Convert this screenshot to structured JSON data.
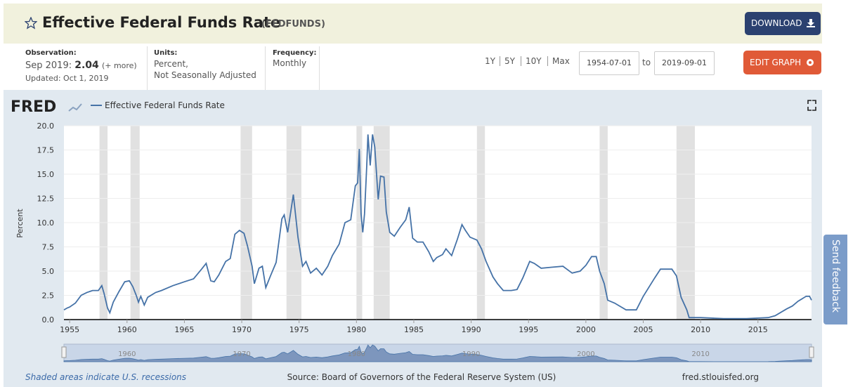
{
  "header": {
    "title": "Effective Federal Funds Rate",
    "series_id": "(FEDFUNDS)",
    "download": "DOWNLOAD"
  },
  "info": {
    "observation_label": "Observation:",
    "observation_date": "Sep 2019:",
    "observation_value": "2.04",
    "more": "(+ more)",
    "updated": "Updated: Oct 1, 2019",
    "units_label": "Units:",
    "units_1": "Percent,",
    "units_2": "Not Seasonally Adjusted",
    "frequency_label": "Frequency:",
    "frequency": "Monthly"
  },
  "range": {
    "links": [
      "1Y",
      "5Y",
      "10Y",
      "Max"
    ],
    "start": "1954-07-01",
    "to": "to",
    "end": "2019-09-01",
    "edit": "EDIT GRAPH"
  },
  "chart_data": {
    "type": "line",
    "logo": "FRED",
    "ylabel": "Percent",
    "x": [
      1954.5,
      1954.8,
      1955.0,
      1955.5,
      1956.0,
      1956.5,
      1957.0,
      1957.5,
      1957.8,
      1958.0,
      1958.3,
      1958.5,
      1958.8,
      1959.3,
      1959.8,
      1960.2,
      1960.5,
      1960.8,
      1961.0,
      1961.2,
      1961.5,
      1961.8,
      1962.5,
      1963.0,
      1964.0,
      1965.0,
      1965.8,
      1966.5,
      1966.9,
      1967.3,
      1967.6,
      1968.0,
      1968.6,
      1969.0,
      1969.4,
      1969.8,
      1970.2,
      1970.5,
      1970.9,
      1971.1,
      1971.5,
      1971.8,
      1972.1,
      1972.5,
      1973.0,
      1973.5,
      1973.7,
      1974.0,
      1974.5,
      1974.9,
      1975.3,
      1975.6,
      1976.0,
      1976.5,
      1977.0,
      1977.5,
      1977.9,
      1978.5,
      1979.0,
      1979.5,
      1979.9,
      1980.1,
      1980.25,
      1980.4,
      1980.55,
      1980.7,
      1980.9,
      1981.0,
      1981.2,
      1981.4,
      1981.6,
      1981.9,
      1982.1,
      1982.4,
      1982.6,
      1982.9,
      1983.3,
      1983.8,
      1984.3,
      1984.6,
      1984.9,
      1985.3,
      1985.8,
      1986.3,
      1986.7,
      1987.0,
      1987.5,
      1987.8,
      1988.3,
      1988.8,
      1989.2,
      1989.5,
      1989.9,
      1990.5,
      1990.9,
      1991.3,
      1991.9,
      1992.3,
      1992.8,
      1993.5,
      1994.0,
      1994.5,
      1995.1,
      1995.5,
      1996.1,
      1997.0,
      1998.0,
      1998.8,
      1999.5,
      2000.0,
      2000.5,
      2000.9,
      2001.2,
      2001.6,
      2001.9,
      2002.5,
      2003.5,
      2004.4,
      2005.0,
      2006.0,
      2006.5,
      2007.5,
      2007.9,
      2008.3,
      2008.8,
      2009.0,
      2010.0,
      2012.0,
      2014.0,
      2015.9,
      2016.5,
      2017.5,
      2018.0,
      2018.5,
      2019.2,
      2019.5,
      2019.67
    ],
    "series": [
      {
        "name": "Effective Federal Funds Rate",
        "color": "#4572a7",
        "values": [
          1.0,
          1.2,
          1.3,
          1.7,
          2.5,
          2.8,
          3.0,
          3.0,
          3.5,
          2.7,
          1.2,
          0.7,
          1.8,
          2.9,
          3.9,
          4.0,
          3.4,
          2.5,
          1.8,
          2.4,
          1.5,
          2.3,
          2.8,
          3.0,
          3.5,
          3.9,
          4.2,
          5.2,
          5.8,
          4.0,
          3.9,
          4.6,
          6.0,
          6.3,
          8.8,
          9.2,
          8.9,
          7.6,
          5.5,
          3.7,
          5.3,
          5.5,
          3.3,
          4.5,
          5.9,
          10.4,
          10.8,
          9.0,
          12.9,
          8.5,
          5.5,
          6.0,
          4.8,
          5.3,
          4.6,
          5.5,
          6.6,
          7.8,
          10.0,
          10.3,
          13.8,
          14.1,
          17.6,
          10.9,
          9.0,
          10.9,
          15.9,
          19.1,
          15.9,
          19.1,
          17.8,
          12.4,
          14.8,
          14.7,
          11.1,
          9.0,
          8.6,
          9.5,
          10.3,
          11.6,
          8.4,
          8.0,
          8.0,
          7.0,
          6.0,
          6.4,
          6.7,
          7.3,
          6.6,
          8.3,
          9.8,
          9.2,
          8.5,
          8.2,
          7.3,
          6.0,
          4.4,
          3.7,
          3.0,
          3.0,
          3.1,
          4.3,
          6.0,
          5.8,
          5.3,
          5.4,
          5.5,
          4.8,
          5.0,
          5.6,
          6.5,
          6.5,
          5.0,
          3.7,
          2.0,
          1.7,
          1.0,
          1.0,
          2.4,
          4.3,
          5.2,
          5.2,
          4.5,
          2.3,
          1.0,
          0.2,
          0.2,
          0.1,
          0.1,
          0.2,
          0.4,
          1.1,
          1.4,
          1.9,
          2.4,
          2.4,
          2.0
        ]
      }
    ],
    "xlim": [
      1954.5,
      2019.67
    ],
    "ylim": [
      0,
      20
    ],
    "xticks": [
      1955,
      1960,
      1965,
      1970,
      1975,
      1980,
      1985,
      1990,
      1995,
      2000,
      2005,
      2010,
      2015
    ],
    "yticks": [
      {
        "value": 0,
        "label": "0.0"
      },
      {
        "value": 2.5,
        "label": "2.5"
      },
      {
        "value": 5,
        "label": "5.0"
      },
      {
        "value": 7.5,
        "label": "7.5"
      },
      {
        "value": 10,
        "label": "10.0"
      },
      {
        "value": 12.5,
        "label": "12.5"
      },
      {
        "value": 15,
        "label": "15.0"
      },
      {
        "value": 17.5,
        "label": "17.5"
      },
      {
        "value": 20,
        "label": "20.0"
      }
    ],
    "grid": true,
    "recessions": [
      [
        1957.6,
        1958.3
      ],
      [
        1960.3,
        1961.1
      ],
      [
        1969.9,
        1970.9
      ],
      [
        1973.9,
        1975.2
      ],
      [
        1980.0,
        1980.5
      ],
      [
        1981.5,
        1982.9
      ],
      [
        1990.5,
        1991.2
      ],
      [
        2001.2,
        2001.9
      ],
      [
        2007.9,
        2009.5
      ]
    ],
    "navigator_xticks": [
      1960,
      1970,
      1980,
      1990,
      2000,
      2010
    ]
  },
  "footer": {
    "note": "Shaded areas indicate U.S. recessions",
    "source": "Source: Board of Governors of the Federal Reserve System (US)",
    "site": "fred.stlouisfed.org"
  },
  "feedback": "Send feedback"
}
